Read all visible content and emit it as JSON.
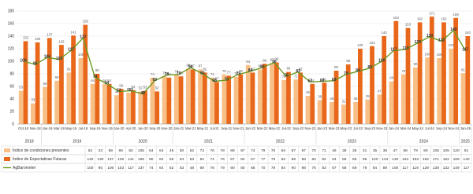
{
  "chart_data": {
    "type": "bar",
    "categories": [
      "Oct-18",
      "Nov-18",
      "Jan-19",
      "Mar-19",
      "May-19",
      "Jul-19",
      "Sep-19",
      "Nov-19",
      "Jan-20",
      "Apr-20",
      "Jun-20",
      "Sep-20",
      "Nov-20",
      "Jan-21",
      "Mar-21",
      "May-21",
      "Jul-21",
      "Sep-21",
      "Nov-21",
      "Jan-22",
      "Mar-22",
      "May-22",
      "Jul-22",
      "Sep-22",
      "Nov-22",
      "Jan-23",
      "Mar-23",
      "May-23",
      "Jul-23",
      "Sep-23",
      "Nov-23",
      "Jan-24",
      "Mar-24",
      "May-24",
      "Jul-24",
      "Sep-24",
      "Nov-24",
      "Jan-25"
    ],
    "year_groups": [
      "2018",
      "2019",
      "2020",
      "2021",
      "2022",
      "2023",
      "2024",
      "2025"
    ],
    "series": [
      {
        "name": "Índice de condiciones presentes",
        "color": "#f8bf86",
        "values": [
          53,
          33,
          59,
          69,
          82,
          105,
          64,
          64,
          46,
          50,
          52,
          74,
          76,
          78,
          88,
          87,
          74,
          79,
          75,
          94,
          87,
          97,
          70,
          71,
          45,
          38,
          35,
          31,
          35,
          39,
          47,
          68,
          79,
          90,
          106,
          105,
          120,
          81
        ]
      },
      {
        "name": "Índice de Expectativas Futuras",
        "color": "#e8671b",
        "values": [
          132,
          130,
          137,
          126,
          141,
          158,
          80,
          64,
          56,
          54,
          53,
          52,
          74,
          76,
          87,
          82,
          67,
          77,
          79,
          82,
          96,
          98,
          83,
          82,
          64,
          66,
          85,
          95,
          120,
          124,
          140,
          164,
          153,
          162,
          171,
          162,
          169,
          140
        ]
      },
      {
        "name": "AgBarometer",
        "color": "#6b9b22",
        "type": "line",
        "values": [
          100,
          95,
          106,
          103,
          117,
          137,
          74,
          64,
          52,
          53,
          48,
          69,
          78,
          79,
          90,
          80,
          68,
          70,
          79,
          84,
          90,
          98,
          76,
          83,
          67,
          68,
          69,
          79,
          84,
          89,
          100,
          117,
          119,
          129,
          139,
          132,
          149,
          117
        ]
      }
    ],
    "ylim": [
      0,
      180
    ],
    "yticks": [
      0,
      20,
      40,
      60,
      80,
      100,
      120,
      140,
      160,
      180
    ],
    "grid": true
  }
}
